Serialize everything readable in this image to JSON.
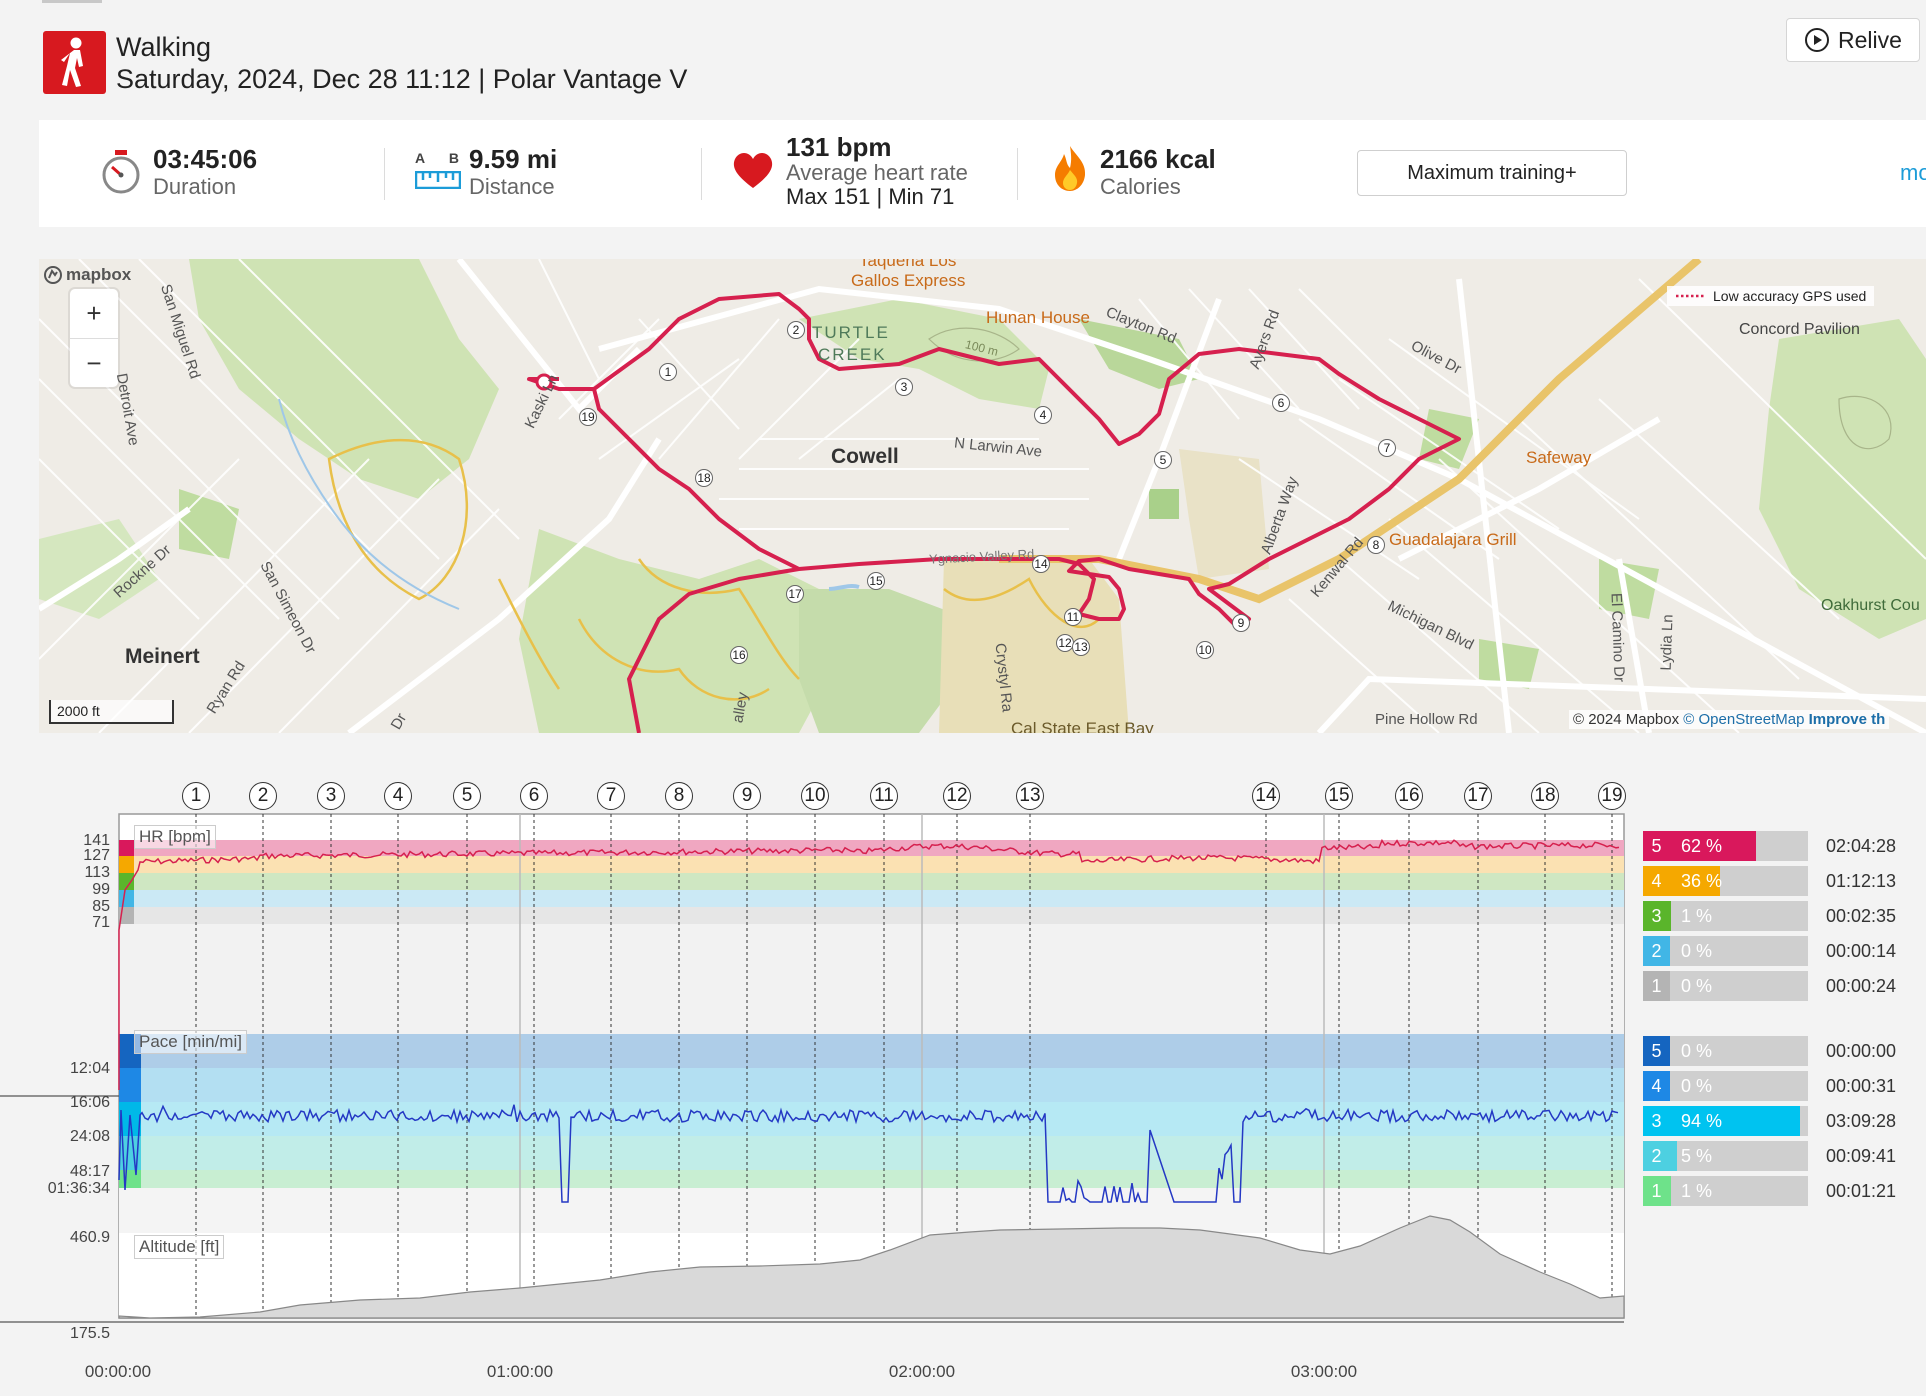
{
  "header": {
    "activity_icon": "walking-person-icon",
    "activity_type": "Walking",
    "subtitle": "Saturday, 2024, Dec 28 11:12 | Polar Vantage V",
    "relive_label": "Relive",
    "relive_icon": "play-circle-icon"
  },
  "stats": {
    "duration": {
      "value": "03:45:06",
      "label": "Duration",
      "icon": "stopwatch-icon"
    },
    "distance": {
      "value": "9.59 mi",
      "label": "Distance",
      "icon": "ruler-icon",
      "a_label": "A",
      "b_label": "B"
    },
    "heart_rate": {
      "value": "131 bpm",
      "label": "Average heart rate",
      "max_min": "Max 151  |  Min 71",
      "icon": "heart-icon"
    },
    "calories": {
      "value": "2166 kcal",
      "label": "Calories",
      "icon": "flame-icon"
    },
    "training_button": "Maximum training+",
    "more_link": "mo"
  },
  "map": {
    "logo": "mapbox",
    "zoom_in": "+",
    "zoom_out": "−",
    "scale": "2000 ft",
    "gps_legend": "Low accuracy GPS used",
    "attribution": "© 2024 Mapbox",
    "attribution_osm": "© OpenStreetMap",
    "attribution_improve": "Improve th",
    "places": {
      "cowell": "Cowell",
      "meinert": "Meinert",
      "turtle": "TURTLE",
      "creek": "CREEK",
      "concord_pavilion": "Concord Pavilion",
      "oakhurst": "Oakhurst Cou"
    },
    "pois": {
      "taqueria": "Taqueria Los",
      "gallos": "Gallos Express",
      "hunan": "Hunan House",
      "safeway": "Safeway",
      "guadalajara": "Guadalajara Grill",
      "calstate": "Cal State East Bay"
    },
    "roads": {
      "clayton": "Clayton Rd",
      "olive": "Olive Dr",
      "ayers": "Ayers Rd",
      "larwin": "N Larwin Ave",
      "alberta": "Alberta Way",
      "kenwal": "Kenwal Rd",
      "michigan": "Michigan Blvd",
      "elcamino": "El Camino Dr",
      "lydia": "Lydia Ln",
      "pinehollow": "Pine Hollow Rd",
      "sanmiguel": "San Miguel Rd",
      "detroit": "Detroit Ave",
      "kaski": "Kaski Ln",
      "rockne": "Rockne Dr",
      "sansimeon": "San Simeon Dr",
      "ryan": "Ryan Rd",
      "crystyl": "Crystyl Ra",
      "valley": "alley",
      "ynacio": "Ygnacio Valley Rd",
      "dr": "Dr",
      "contour": "100 m"
    },
    "lap_markers": [
      "1",
      "2",
      "3",
      "4",
      "5",
      "6",
      "7",
      "8",
      "9",
      "10",
      "11",
      "12",
      "13",
      "14",
      "15",
      "16",
      "17",
      "18",
      "19"
    ]
  },
  "chart_data": [
    {
      "type": "line",
      "title": "HR [bpm]",
      "ylabel": "HR [bpm]",
      "yticks": [
        "141",
        "127",
        "113",
        "99",
        "85",
        "71"
      ],
      "xticks": [
        "00:00:00",
        "01:00:00",
        "02:00:00",
        "03:00:00"
      ],
      "lap_markers": [
        "1",
        "2",
        "3",
        "4",
        "5",
        "6",
        "7",
        "8",
        "9",
        "10",
        "11",
        "12",
        "13",
        "14",
        "15",
        "16",
        "17",
        "18",
        "19"
      ],
      "zones": [
        {
          "zone": "5",
          "percent": "62 %",
          "fraction": 0.62,
          "time": "02:04:28",
          "color": "#d9185c"
        },
        {
          "zone": "4",
          "percent": "36 %",
          "fraction": 0.36,
          "time": "01:12:13",
          "color": "#f5a800"
        },
        {
          "zone": "3",
          "percent": "1 %",
          "fraction": 0.01,
          "time": "00:02:35",
          "color": "#5ab52b"
        },
        {
          "zone": "2",
          "percent": "0 %",
          "fraction": 0.0,
          "time": "00:00:14",
          "color": "#41b6e6"
        },
        {
          "zone": "1",
          "percent": "0 %",
          "fraction": 0.0,
          "time": "00:00:24",
          "color": "#b4b4b4"
        }
      ]
    },
    {
      "type": "line",
      "title": "Pace [min/mi]",
      "ylabel": "Pace [min/mi]",
      "yticks": [
        "12:04",
        "16:06",
        "24:08",
        "48:17",
        "01:36:34"
      ],
      "zones": [
        {
          "zone": "5",
          "percent": "0 %",
          "fraction": 0.0,
          "time": "00:00:00",
          "color": "#1565c0"
        },
        {
          "zone": "4",
          "percent": "0 %",
          "fraction": 0.0,
          "time": "00:00:31",
          "color": "#1e88e5"
        },
        {
          "zone": "3",
          "percent": "94 %",
          "fraction": 0.94,
          "time": "03:09:28",
          "color": "#00c3f0"
        },
        {
          "zone": "2",
          "percent": "5 %",
          "fraction": 0.05,
          "time": "00:09:41",
          "color": "#4dd0e1"
        },
        {
          "zone": "1",
          "percent": "1 %",
          "fraction": 0.01,
          "time": "00:01:21",
          "color": "#6ee28a"
        }
      ]
    },
    {
      "type": "area",
      "title": "Altitude [ft]",
      "ylabel": "Altitude [ft]",
      "yticks": [
        "460.9",
        "175.5"
      ],
      "ylim": [
        175.5,
        460.9
      ]
    }
  ]
}
